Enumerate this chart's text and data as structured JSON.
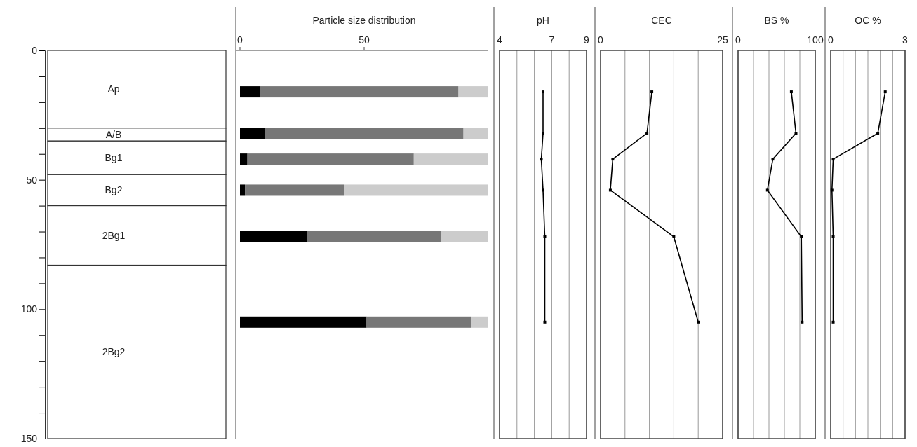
{
  "chart_data": [
    {
      "type": "bar",
      "stacked": true,
      "categories": [
        null
      ],
      "series": [
        {
          "name": "Ap",
          "color": "#ffffff",
          "values": [
            30
          ]
        },
        {
          "name": "A/B",
          "color": "#ffffff",
          "values": [
            5
          ]
        },
        {
          "name": "Bg1",
          "color": "#ffffff",
          "values": [
            13
          ]
        },
        {
          "name": "Bg2",
          "color": "#ffffff",
          "values": [
            12
          ]
        },
        {
          "name": "2Bg1",
          "color": "#ffffff",
          "values": [
            23
          ]
        },
        {
          "name": "2Bg2",
          "color": "#ffffff",
          "values": [
            67
          ]
        }
      ],
      "ylim": [
        150,
        0
      ],
      "yticks": [
        0,
        {
          "value": 10,
          "label": null
        },
        {
          "value": 20,
          "label": null
        },
        {
          "value": 30,
          "label": null
        },
        {
          "value": 40,
          "label": null
        },
        50,
        {
          "value": 60,
          "label": null
        },
        {
          "value": 70,
          "label": null
        },
        {
          "value": 80,
          "label": null
        },
        {
          "value": 90,
          "label": null
        },
        100,
        {
          "value": 110,
          "label": null
        },
        {
          "value": 120,
          "label": null
        },
        {
          "value": 130,
          "label": null
        },
        {
          "value": 140,
          "label": null
        },
        150
      ]
    },
    {
      "type": "bar",
      "title": "Particle size distribution",
      "orientation": "horizontal",
      "stacked": true,
      "x": [
        16,
        32,
        42,
        54,
        72,
        105
      ],
      "series": [
        {
          "color": "#000000",
          "values": [
            8,
            10,
            3,
            2,
            27,
            51
          ]
        },
        {
          "color": "#777777",
          "values": [
            80,
            80,
            67,
            40,
            54,
            42
          ]
        },
        {
          "color": "#cccccc",
          "values": [
            12,
            10,
            30,
            58,
            19,
            7
          ]
        }
      ],
      "xlim": [
        0,
        100
      ],
      "xticks": [
        0,
        50
      ],
      "ylim": [
        150,
        0
      ],
      "tick_labels": "x"
    },
    {
      "type": "line",
      "title": "pH",
      "series": [
        {
          "color": "#000000",
          "x": [
            6.5,
            6.5,
            6.4,
            6.5,
            6.6,
            6.6
          ],
          "values": [
            16,
            32,
            42,
            54,
            72,
            105
          ]
        }
      ],
      "xlim": [
        4,
        9
      ],
      "xticks": [
        4,
        {
          "value": 5,
          "label": null
        },
        {
          "value": 6,
          "label": null
        },
        7,
        {
          "value": 8,
          "label": null
        },
        9
      ],
      "ylim": [
        150,
        0
      ],
      "grid": "x",
      "marker": "square",
      "tick_labels": "x"
    },
    {
      "type": "line",
      "title": "CEC",
      "series": [
        {
          "color": "#000000",
          "x": [
            10.5,
            9.5,
            2.5,
            2,
            15,
            20
          ],
          "values": [
            16,
            32,
            42,
            54,
            72,
            105
          ]
        }
      ],
      "xlim": [
        0,
        25
      ],
      "xticks": [
        0,
        {
          "value": 5,
          "label": null
        },
        {
          "value": 10,
          "label": null
        },
        {
          "value": 15,
          "label": null
        },
        {
          "value": 20,
          "label": null
        },
        25
      ],
      "ylim": [
        150,
        0
      ],
      "grid": "x",
      "marker": "square",
      "tick_labels": "x"
    },
    {
      "type": "line",
      "title": "BS %",
      "series": [
        {
          "color": "#000000",
          "x": [
            69,
            75,
            45,
            38,
            82,
            83
          ],
          "values": [
            16,
            32,
            42,
            54,
            72,
            105
          ]
        }
      ],
      "xlim": [
        0,
        100
      ],
      "xticks": [
        0,
        {
          "value": 20,
          "label": null
        },
        {
          "value": 40,
          "label": null
        },
        {
          "value": 60,
          "label": null
        },
        {
          "value": 80,
          "label": null
        },
        100
      ],
      "ylim": [
        150,
        0
      ],
      "grid": "x",
      "marker": "square",
      "tick_labels": "x"
    },
    {
      "type": "line",
      "title": "OC %",
      "series": [
        {
          "color": "#000000",
          "x": [
            2.2,
            1.9,
            0.1,
            0.05,
            0.1,
            0.1
          ],
          "values": [
            16,
            32,
            42,
            54,
            72,
            105
          ]
        }
      ],
      "xlim": [
        0,
        3
      ],
      "xticks": [
        0,
        {
          "value": 0.5,
          "label": null
        },
        {
          "value": 1,
          "label": null
        },
        {
          "value": 1.5,
          "label": null
        },
        {
          "value": 2,
          "label": null
        },
        {
          "value": 2.5,
          "label": null
        },
        3
      ],
      "ylim": [
        150,
        0
      ],
      "grid": "x",
      "marker": "square",
      "tick_labels": "x"
    }
  ]
}
